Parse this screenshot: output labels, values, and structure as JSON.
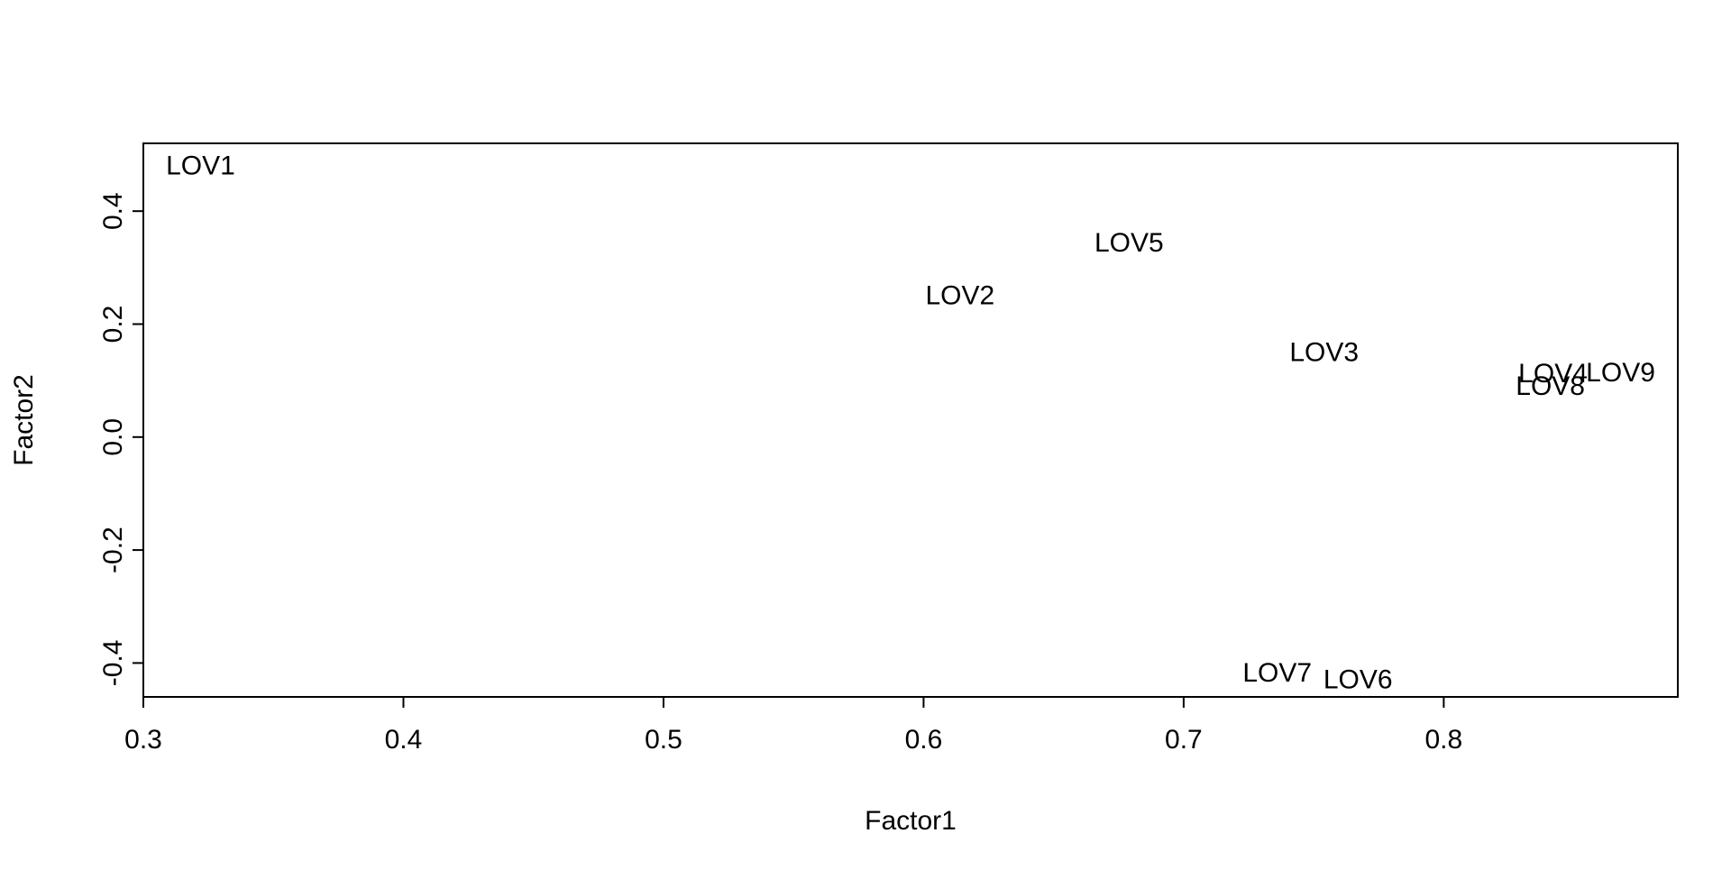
{
  "chart_data": {
    "type": "scatter",
    "title": "",
    "xlabel": "Factor1",
    "ylabel": "Factor2",
    "xlim": [
      0.3,
      0.89
    ],
    "ylim": [
      -0.46,
      0.52
    ],
    "xticks": [
      0.3,
      0.4,
      0.5,
      0.6,
      0.7,
      0.8
    ],
    "yticks": [
      -0.4,
      -0.2,
      0.0,
      0.2,
      0.4
    ],
    "xtick_labels": [
      "0.3",
      "0.4",
      "0.5",
      "0.6",
      "0.7",
      "0.8"
    ],
    "ytick_labels": [
      "-0.4",
      "-0.2",
      "0.0",
      "0.2",
      "0.4"
    ],
    "grid": false,
    "points": [
      {
        "label": "LOV1",
        "x": 0.322,
        "y": 0.48
      },
      {
        "label": "LOV2",
        "x": 0.614,
        "y": 0.25
      },
      {
        "label": "LOV3",
        "x": 0.754,
        "y": 0.15
      },
      {
        "label": "LOV4",
        "x": 0.842,
        "y": 0.112
      },
      {
        "label": "LOV5",
        "x": 0.679,
        "y": 0.344
      },
      {
        "label": "LOV6",
        "x": 0.767,
        "y": -0.43
      },
      {
        "label": "LOV7",
        "x": 0.736,
        "y": -0.418
      },
      {
        "label": "LOV8",
        "x": 0.841,
        "y": 0.09
      },
      {
        "label": "LOV9",
        "x": 0.868,
        "y": 0.114
      }
    ]
  }
}
